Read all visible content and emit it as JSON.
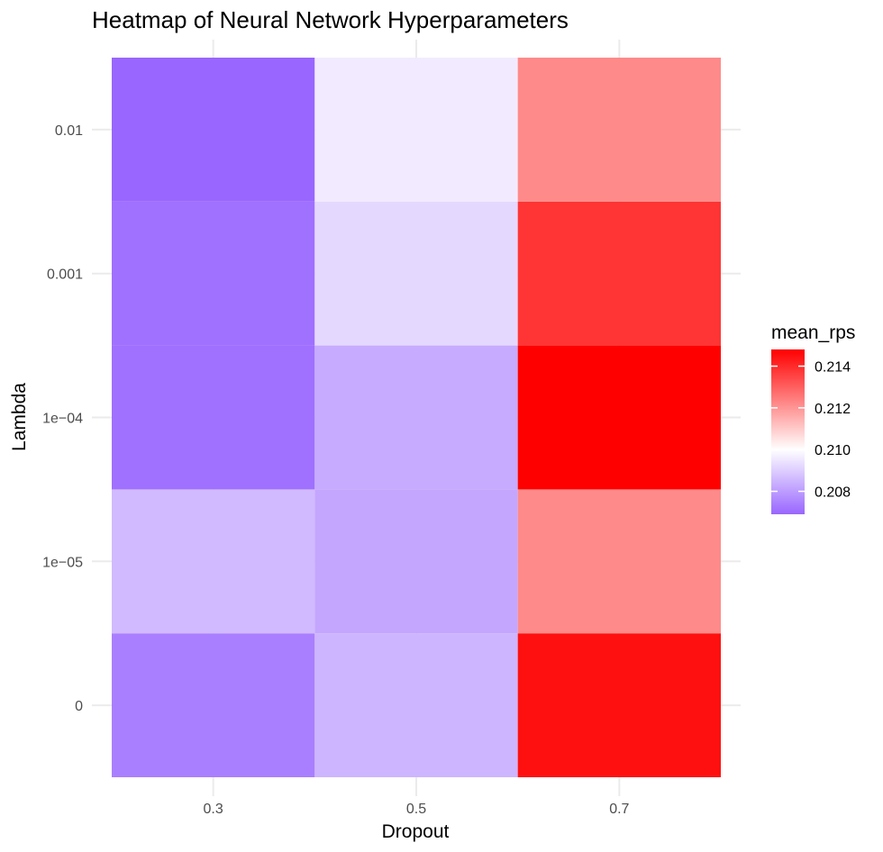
{
  "chart_data": {
    "type": "heatmap",
    "title": "Heatmap of Neural Network Hyperparameters",
    "xlabel": "Dropout",
    "ylabel": "Lambda",
    "x_categories": [
      "0.3",
      "0.5",
      "0.7"
    ],
    "y_categories": [
      "0",
      "1e−05",
      "1e−04",
      "0.001",
      "0.01"
    ],
    "values": [
      [
        0.2074,
        0.2085,
        0.2145
      ],
      [
        0.2086,
        0.2082,
        0.2122
      ],
      [
        0.2071,
        0.2083,
        0.2148
      ],
      [
        0.2071,
        0.2092,
        0.2138
      ],
      [
        0.2069,
        0.2096,
        0.2122
      ]
    ],
    "legend": {
      "title": "mean_rps",
      "ticks": [
        0.208,
        0.21,
        0.212,
        0.214
      ],
      "tick_labels": [
        "0.208",
        "0.210",
        "0.212",
        "0.214"
      ],
      "range": [
        0.2069,
        0.2148
      ],
      "midpoint": 0.21,
      "low_color": "#9966ff",
      "mid_color": "#ffffff",
      "high_color": "#ff0000",
      "position": "right"
    },
    "grid": true
  }
}
